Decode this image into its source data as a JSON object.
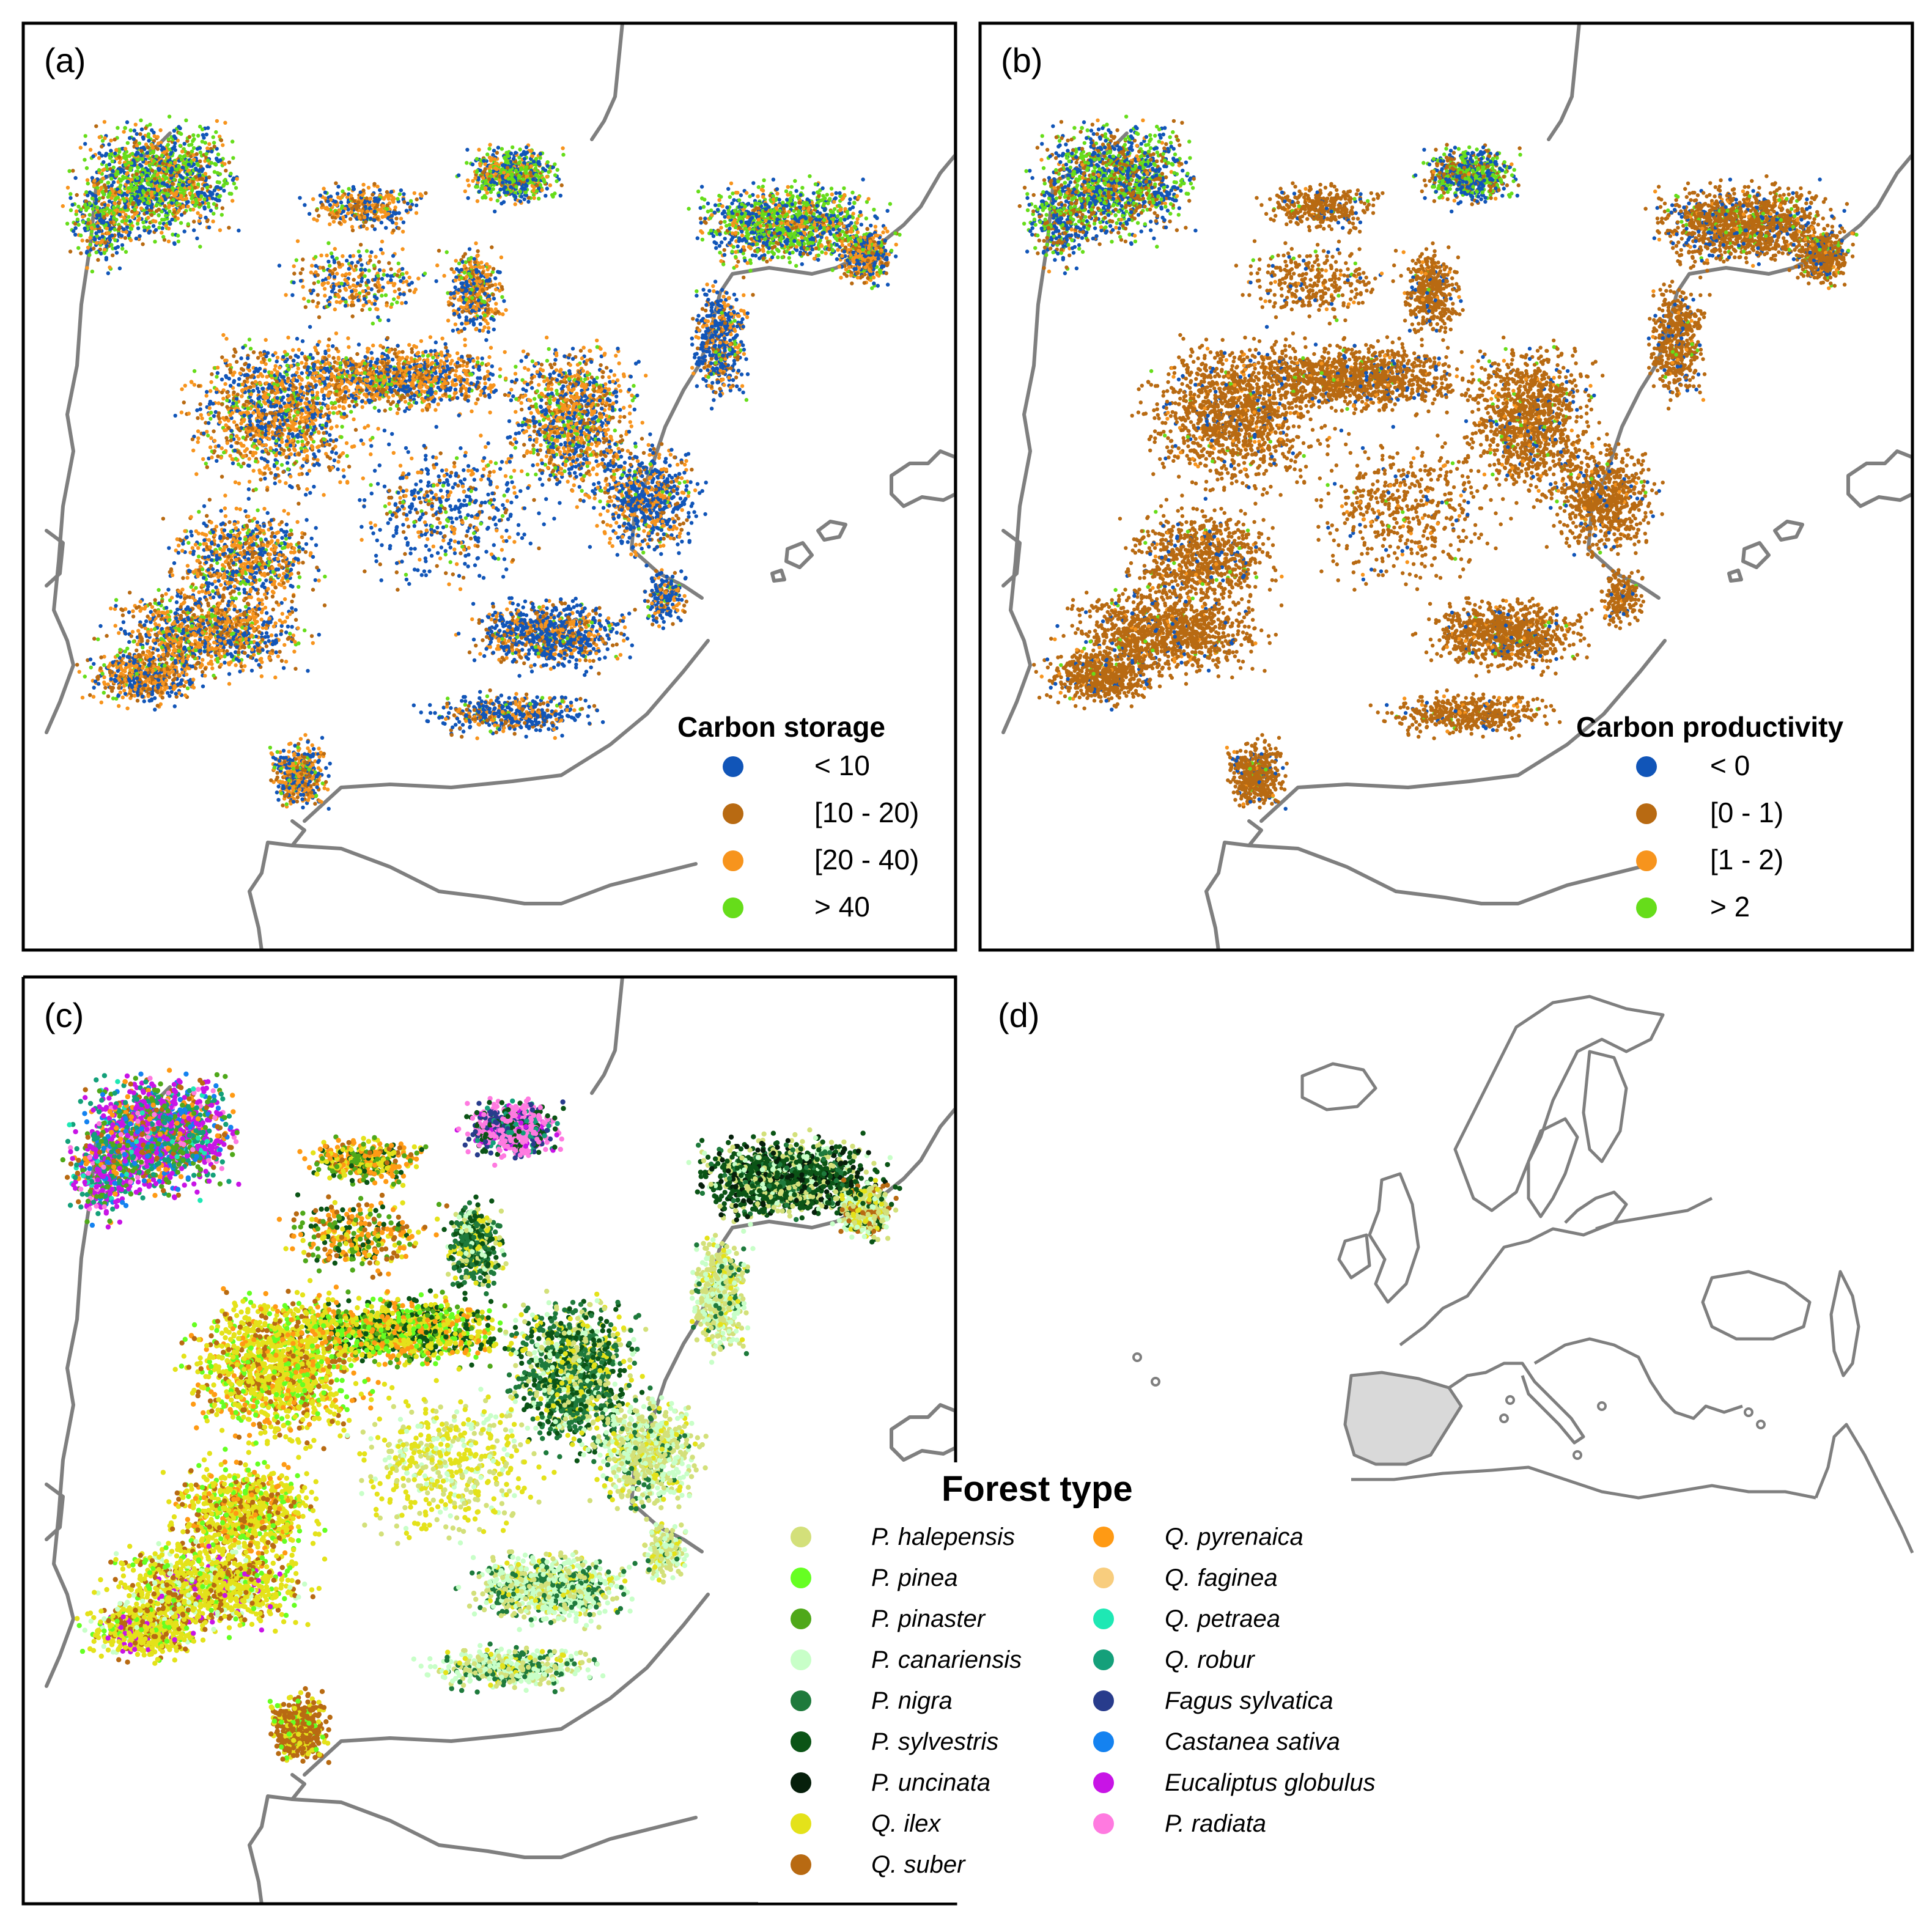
{
  "panels": [
    {
      "letter": "(a)",
      "legend_title": "Carbon storage",
      "legend": [
        {
          "label": "< 10",
          "color": "#1155b8"
        },
        {
          "label": "[10 - 20)",
          "color": "#b86a12"
        },
        {
          "label": "[20 - 40)",
          "color": "#f7941d"
        },
        {
          "label": "> 40",
          "color": "#66dd1a"
        }
      ]
    },
    {
      "letter": "(b)",
      "legend_title": "Carbon productivity",
      "legend": [
        {
          "label": "< 0",
          "color": "#1155b8"
        },
        {
          "label": "[0 - 1)",
          "color": "#b86a12"
        },
        {
          "label": "[1 - 2)",
          "color": "#f7941d"
        },
        {
          "label": "> 2",
          "color": "#66dd1a"
        }
      ]
    },
    {
      "letter": "(c)",
      "legend_title": "Forest type",
      "legend": [
        {
          "label": "P. halepensis",
          "color": "#d3e07a"
        },
        {
          "label": "P. pinea",
          "color": "#66ff22"
        },
        {
          "label": "P. pinaster",
          "color": "#4fa81a"
        },
        {
          "label": "P. canariensis",
          "color": "#c8ffc8"
        },
        {
          "label": "P. nigra",
          "color": "#1e7a3c"
        },
        {
          "label": "P. sylvestris",
          "color": "#0b5416"
        },
        {
          "label": "P. uncinata",
          "color": "#061f0b"
        },
        {
          "label": "Q. ilex",
          "color": "#e4e21a"
        },
        {
          "label": "Q. suber",
          "color": "#b86a12"
        },
        {
          "label": "Q. pyrenaica",
          "color": "#ff9a14"
        },
        {
          "label": "Q. faginea",
          "color": "#f8cd7e"
        },
        {
          "label": "Q. petraea",
          "color": "#1ee8b4"
        },
        {
          "label": "Q. robur",
          "color": "#14a07a"
        },
        {
          "label": "Fagus sylvatica",
          "color": "#283c8c"
        },
        {
          "label": "Castanea sativa",
          "color": "#1482f0"
        },
        {
          "label": "Eucaliptus globulus",
          "color": "#c814e6"
        },
        {
          "label": "P. radiata",
          "color": "#ff7ae0"
        }
      ]
    },
    {
      "letter": "(d)"
    }
  ],
  "colors": {
    "coastline": "#7f7f7f",
    "highlight_region": "#d9d9d9",
    "frame": "#000000"
  }
}
